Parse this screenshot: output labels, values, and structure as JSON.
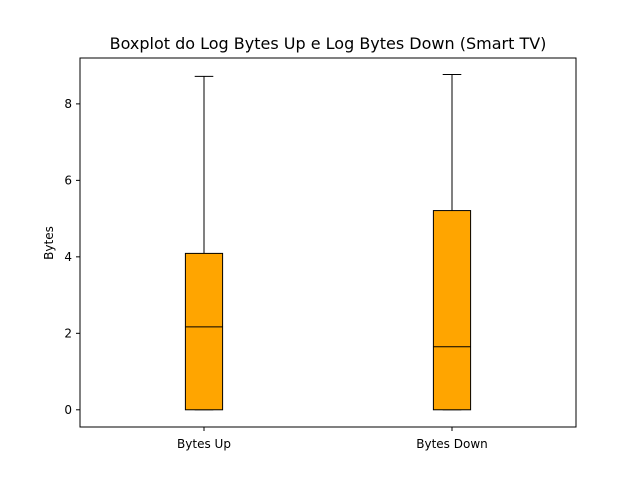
{
  "chart_data": {
    "type": "boxplot",
    "title": "Boxplot do Log Bytes Up e Log Bytes Down (Smart TV)",
    "xlabel": "",
    "ylabel": "Bytes",
    "ylim": [
      -0.45,
      9.2
    ],
    "yticks": [
      0,
      2,
      4,
      6,
      8
    ],
    "grid": false,
    "categories": [
      "Bytes Up",
      "Bytes Down"
    ],
    "boxes": [
      {
        "label": "Bytes Up",
        "whisker_low": 0,
        "q1": 0,
        "median": 2.17,
        "q3": 4.09,
        "whisker_high": 8.72
      },
      {
        "label": "Bytes Down",
        "whisker_low": 0,
        "q1": 0,
        "median": 1.65,
        "q3": 5.21,
        "whisker_high": 8.77
      }
    ],
    "colors": {
      "box_fill": "#ffa500",
      "box_edge": "#000000",
      "median": "#000000"
    }
  }
}
